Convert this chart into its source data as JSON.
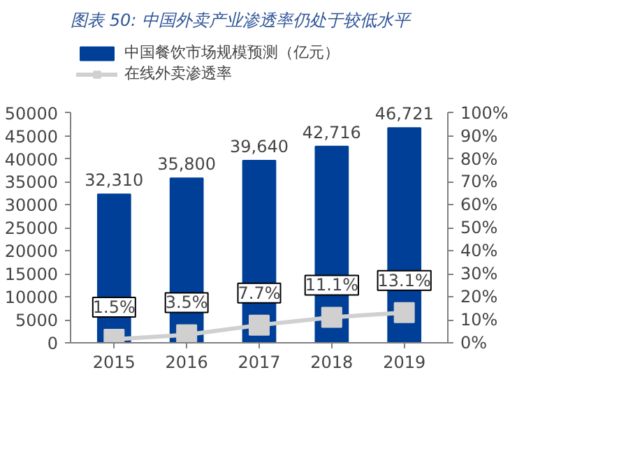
{
  "chart_data": {
    "type": "bar",
    "title": "图表 50:  中国外卖产业渗透率仍处于较低水平",
    "categories": [
      "2015",
      "2016",
      "2017",
      "2018",
      "2019"
    ],
    "series": [
      {
        "name": "中国餐饮市场规模预测（亿元）",
        "color": "#003f98",
        "values": [
          32310,
          35800,
          39640,
          42716,
          46721
        ],
        "value_labels": [
          "32,310",
          "35,800",
          "39,640",
          "42,716",
          "46,721"
        ]
      },
      {
        "name": "在线外卖渗透率",
        "type": "line",
        "axis": "y2",
        "color": "#d0d0d0",
        "marker": "square",
        "values": [
          1.5,
          3.5,
          7.7,
          11.1,
          13.1
        ],
        "value_labels": [
          "1.5%",
          "3.5%",
          "7.7%",
          "11.1%",
          "13.1%"
        ]
      }
    ],
    "ylim": [
      0,
      50000
    ],
    "yticks": [
      0,
      5000,
      10000,
      15000,
      20000,
      25000,
      30000,
      35000,
      40000,
      45000,
      50000
    ],
    "y2lim": [
      0,
      100
    ],
    "y2ticks": [
      {
        "value": 0,
        "label": "0%"
      },
      {
        "value": 10,
        "label": "10%"
      },
      {
        "value": 20,
        "label": "20%"
      },
      {
        "value": 30,
        "label": "30%"
      },
      {
        "value": 40,
        "label": "40%"
      },
      {
        "value": 50,
        "label": "50%"
      },
      {
        "value": 60,
        "label": "60%"
      },
      {
        "value": 70,
        "label": "70%"
      },
      {
        "value": 80,
        "label": "80%"
      },
      {
        "value": 90,
        "label": "90%"
      },
      {
        "value": 100,
        "label": "100%"
      }
    ],
    "grid": false,
    "legend": "top left"
  }
}
